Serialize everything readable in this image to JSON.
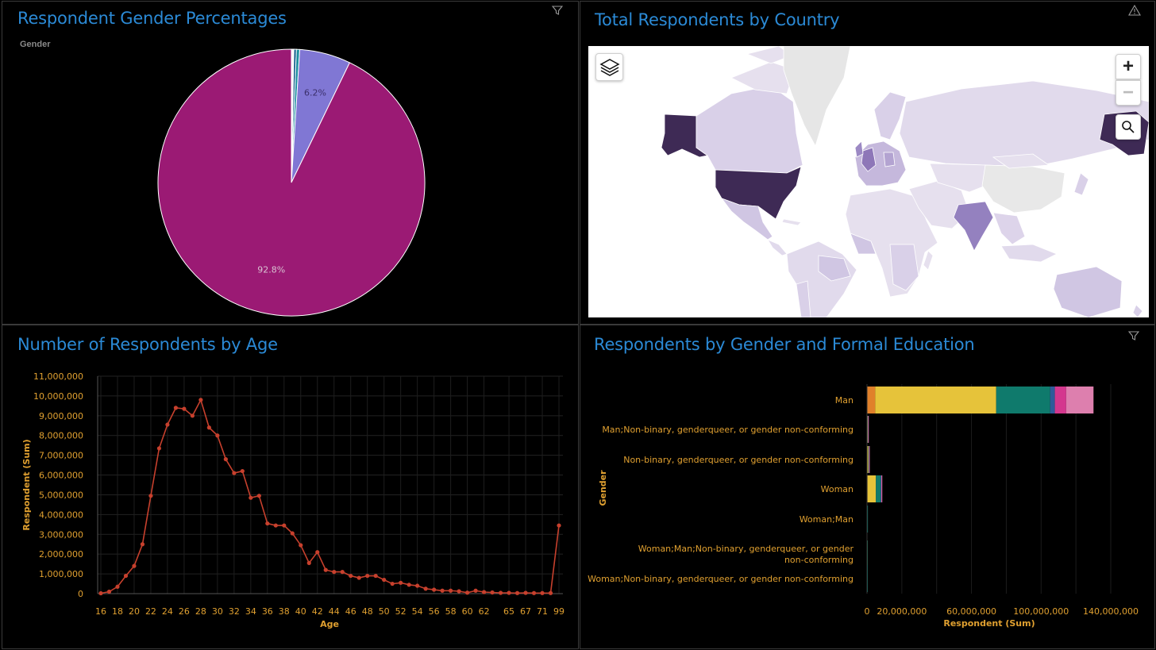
{
  "panels": {
    "gender_pie": {
      "title": "Respondent Gender Percentages",
      "legend_title": "Gender",
      "labels": [
        "6.2%",
        "92.8%"
      ]
    },
    "country_map": {
      "title": "Total Respondents by Country",
      "zoom_in": "+",
      "zoom_out": "−"
    },
    "age_line": {
      "title": "Number of Respondents by Age"
    },
    "edu_bar": {
      "title": "Respondents by Gender and Formal Education"
    }
  },
  "icons": {
    "filter": "filter-icon",
    "warning": "warning-icon",
    "layers": "layers-icon",
    "search": "search-icon"
  },
  "colors": {
    "title": "#2b8ad6",
    "axis_text": "#e0a030",
    "pie_man": "#9b1a74",
    "pie_woman": "#8077d4",
    "line": "#c7402d"
  },
  "chart_data": [
    {
      "type": "pie",
      "title": "Respondent Gender Percentages",
      "legend_title": "Gender",
      "slices": [
        {
          "value": 92.8,
          "color": "#9b1a74",
          "label": "92.8%"
        },
        {
          "value": 6.2,
          "color": "#8077d4",
          "label": "6.2%"
        },
        {
          "value": 0.4,
          "color": "#1c8fa0",
          "label": ""
        },
        {
          "value": 0.3,
          "color": "#0e5a8a",
          "label": ""
        },
        {
          "value": 0.3,
          "color": "#ffffff",
          "label": ""
        }
      ]
    },
    {
      "type": "line",
      "title": "Number of Respondents by Age",
      "xlabel": "Age",
      "ylabel": "Respondent (Sum)",
      "ylim": [
        0,
        11000000
      ],
      "yticks": [
        0,
        1000000,
        2000000,
        3000000,
        4000000,
        5000000,
        6000000,
        7000000,
        8000000,
        9000000,
        10000000,
        11000000
      ],
      "ytick_labels": [
        "0",
        "1,000,000",
        "2,000,000",
        "3,000,000",
        "4,000,000",
        "5,000,000",
        "6,000,000",
        "7,000,000",
        "8,000,000",
        "9,000,000",
        "10,000,000",
        "11,000,000"
      ],
      "xtick_labels": [
        "16",
        "18",
        "20",
        "22",
        "24",
        "26",
        "28",
        "30",
        "32",
        "34",
        "36",
        "38",
        "40",
        "42",
        "44",
        "46",
        "48",
        "50",
        "52",
        "54",
        "56",
        "58",
        "60",
        "62",
        "65",
        "67",
        "71",
        "99"
      ],
      "values": [
        20000,
        100000,
        350000,
        900000,
        1400000,
        2500000,
        4950000,
        7350000,
        8550000,
        9400000,
        9350000,
        9000000,
        9800000,
        8400000,
        8000000,
        6800000,
        6100000,
        6200000,
        4850000,
        4950000,
        3550000,
        3450000,
        3450000,
        3050000,
        2450000,
        1550000,
        2100000,
        1200000,
        1100000,
        1100000,
        900000,
        800000,
        900000,
        900000,
        700000,
        500000,
        550000,
        450000,
        400000,
        250000,
        200000,
        150000,
        150000,
        120000,
        50000,
        150000,
        80000,
        60000,
        40000,
        40000,
        30000,
        40000,
        30000,
        30000,
        30000,
        3450000
      ]
    },
    {
      "type": "bar",
      "title": "Respondents by Gender and Formal Education",
      "xlabel": "Respondent (Sum)",
      "ylabel": "Gender",
      "xlim": [
        0,
        140000000
      ],
      "xtick_values": [
        0,
        20000000,
        60000000,
        100000000,
        140000000
      ],
      "xtick_labels": [
        "0",
        "20,000,000",
        "60,000,000",
        "100,000,000",
        "140,000,000"
      ],
      "categories": [
        "Man",
        "Man;Non-binary, genderqueer, or gender non-conforming",
        "Non-binary, genderqueer, or gender non-conforming",
        "Woman",
        "Woman;Man",
        "Woman;Man;Non-binary, genderqueer, or gender non-conforming",
        "Woman;Non-binary, genderqueer, or gender non-conforming"
      ],
      "category_lines": [
        [
          "Man"
        ],
        [
          "Man;Non-binary, genderqueer, or gender non-conforming"
        ],
        [
          "Non-binary, genderqueer, or gender non-conforming"
        ],
        [
          "Woman"
        ],
        [
          "Woman;Man"
        ],
        [
          "Woman;Man;Non-binary, genderqueer, or gender",
          "non-conforming"
        ],
        [
          "Woman;Non-binary, genderqueer, or gender non-conforming"
        ]
      ],
      "series": [
        {
          "color": "#e0802a",
          "values": [
            4700000,
            50000,
            50000,
            300000,
            0,
            0,
            0
          ]
        },
        {
          "color": "#e6c33a",
          "values": [
            69500000,
            300000,
            700000,
            4800000,
            150000,
            50000,
            100000
          ]
        },
        {
          "color": "#0f7a6c",
          "values": [
            31000000,
            200000,
            300000,
            2800000,
            100000,
            20000,
            50000
          ]
        },
        {
          "color": "#2f5b9a",
          "values": [
            2700000,
            20000,
            30000,
            300000,
            0,
            0,
            0
          ]
        },
        {
          "color": "#d4378e",
          "values": [
            6500000,
            50000,
            100000,
            200000,
            0,
            0,
            0
          ]
        },
        {
          "color": "#dd7fae",
          "values": [
            15700000,
            100000,
            200000,
            100000,
            0,
            0,
            0
          ]
        }
      ]
    }
  ]
}
